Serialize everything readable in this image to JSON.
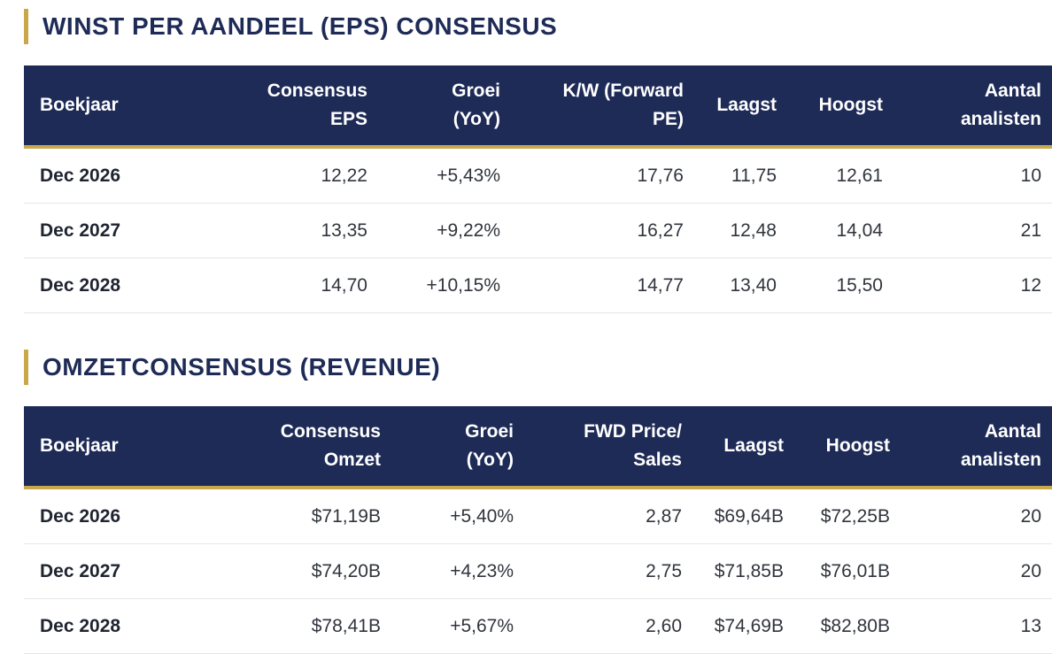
{
  "eps": {
    "title": "WINST PER AANDEEL (EPS) CONSENSUS",
    "headers": {
      "year": "Boekjaar",
      "consensus_1": "Consensus",
      "consensus_2": "EPS",
      "growth_1": "Groei",
      "growth_2": "(YoY)",
      "pe_1": "K/W (Forward",
      "pe_2": "PE)",
      "low": "Laagst",
      "high": "Hoogst",
      "analysts_1": "Aantal",
      "analysts_2": "analisten"
    },
    "rows": [
      {
        "year": "Dec 2026",
        "value": "12,22",
        "growth": "+5,43%",
        "ratio": "17,76",
        "low": "11,75",
        "high": "12,61",
        "analysts": "10"
      },
      {
        "year": "Dec 2027",
        "value": "13,35",
        "growth": "+9,22%",
        "ratio": "16,27",
        "low": "12,48",
        "high": "14,04",
        "analysts": "21"
      },
      {
        "year": "Dec 2028",
        "value": "14,70",
        "growth": "+10,15%",
        "ratio": "14,77",
        "low": "13,40",
        "high": "15,50",
        "analysts": "12"
      }
    ]
  },
  "revenue": {
    "title": "OMZETCONSENSUS (REVENUE)",
    "headers": {
      "year": "Boekjaar",
      "consensus_1": "Consensus",
      "consensus_2": "Omzet",
      "growth_1": "Groei",
      "growth_2": "(YoY)",
      "ps_1": "FWD Price/",
      "ps_2": "Sales",
      "low": "Laagst",
      "high": "Hoogst",
      "analysts_1": "Aantal",
      "analysts_2": "analisten"
    },
    "rows": [
      {
        "year": "Dec 2026",
        "value": "$71,19B",
        "growth": "+5,40%",
        "ratio": "2,87",
        "low": "$69,64B",
        "high": "$72,25B",
        "analysts": "20"
      },
      {
        "year": "Dec 2027",
        "value": "$74,20B",
        "growth": "+4,23%",
        "ratio": "2,75",
        "low": "$71,85B",
        "high": "$76,01B",
        "analysts": "20"
      },
      {
        "year": "Dec 2028",
        "value": "$78,41B",
        "growth": "+5,67%",
        "ratio": "2,60",
        "low": "$74,69B",
        "high": "$82,80B",
        "analysts": "13"
      }
    ]
  },
  "colors": {
    "header_bg": "#1e2b57",
    "accent_gold": "#c9a84c",
    "title_text": "#1e2b57"
  }
}
